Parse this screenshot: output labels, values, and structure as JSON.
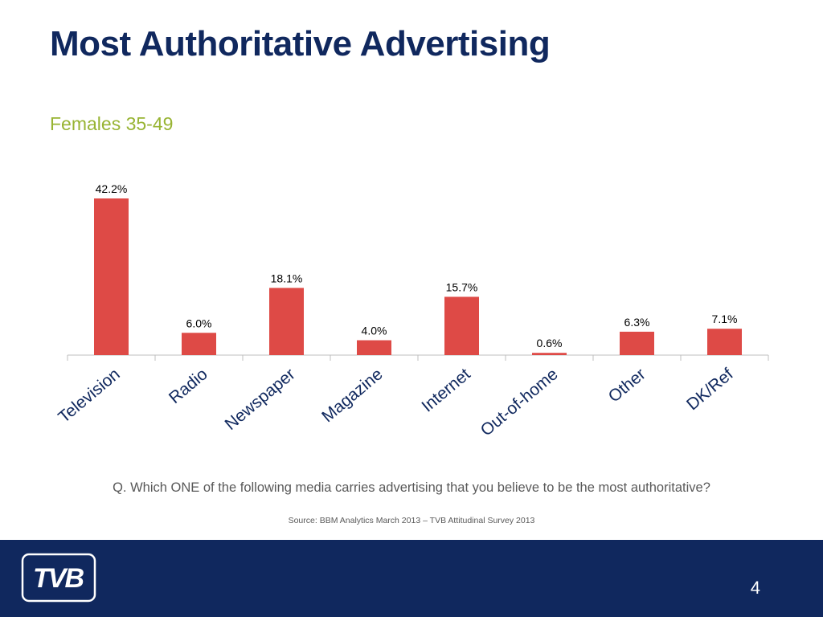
{
  "slide": {
    "title": "Most Authoritative Advertising",
    "subtitle": "Females 35-49",
    "question": "Q. Which ONE of the following media carries advertising that you believe to be the most authoritative?",
    "source": "Source: BBM Analytics March 2013 – TVB Attitudinal Survey 2013",
    "page_number": "4",
    "logo_text": "TVB"
  },
  "colors": {
    "title": "#10285e",
    "subtitle": "#98b433",
    "bar": "#de4a46",
    "footer": "#10285e",
    "axis": "#bfbfbf"
  },
  "chart_data": {
    "type": "bar",
    "title": "",
    "xlabel": "",
    "ylabel": "",
    "categories": [
      "Television",
      "Radio",
      "Newspaper",
      "Magazine",
      "Internet",
      "Out-of-home",
      "Other",
      "DK/Ref"
    ],
    "values": [
      42.2,
      6.0,
      18.1,
      4.0,
      15.7,
      0.6,
      6.3,
      7.1
    ],
    "data_labels": [
      "42.2%",
      "6.0%",
      "18.1%",
      "4.0%",
      "15.7%",
      "0.6%",
      "6.3%",
      "7.1%"
    ],
    "ylim": [
      0,
      42.2
    ],
    "grid": false,
    "legend": "none"
  }
}
